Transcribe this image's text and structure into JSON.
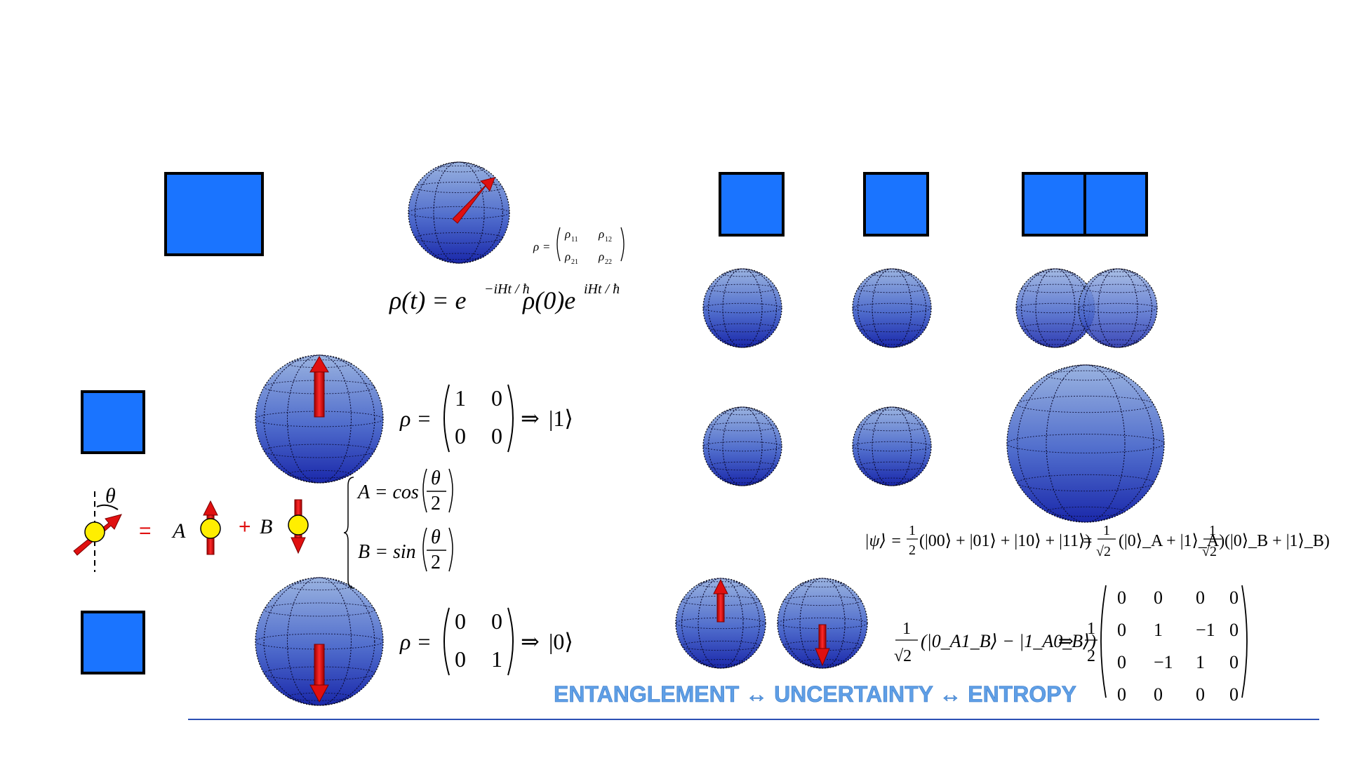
{
  "colors": {
    "box_fill": "#1a74ff",
    "box_stroke": "#000000",
    "sphere_top": "#8fa9dc",
    "sphere_bottom": "#1f2fb0",
    "arrow": "#dd0000",
    "particle": "#ffee00",
    "rule": "#2c50b4",
    "banner_text": "#5f9fe6",
    "theta_red": "#e01010"
  },
  "eq_rho_matrix": {
    "lhs": "ρ",
    "eq": "=",
    "r11": "ρ",
    "s11": "11",
    "r12": "ρ",
    "s12": "12",
    "r21": "ρ",
    "s21": "21",
    "r22": "ρ",
    "s22": "22"
  },
  "eq_time_evolution": {
    "lhs": "ρ(t) = e",
    "exp1": "−iHt / ħ",
    "mid": "ρ(0)e",
    "exp2": "iHt / ħ"
  },
  "eq_state_one": {
    "lhs": "ρ =",
    "m11": "1",
    "m12": "0",
    "m21": "0",
    "m22": "0",
    "implies": "⇒",
    "ket": "|1⟩"
  },
  "eq_state_zero": {
    "lhs": "ρ =",
    "m11": "0",
    "m12": "0",
    "m21": "0",
    "m22": "1",
    "implies": "⇒",
    "ket": "|0⟩"
  },
  "superposition": {
    "theta": "θ",
    "equals": "=",
    "coef_a": "A",
    "plus": "+",
    "coef_b": "B"
  },
  "coefficients": {
    "a_lhs": "A = cos",
    "a_num": "θ",
    "a_den": "2",
    "b_lhs": "B = sin",
    "b_num": "θ",
    "b_den": "2"
  },
  "eq_product_state": {
    "psi": "|ψ⟩ =",
    "half_num": "1",
    "half_den": "2",
    "expansion": "(|00⟩ + |01⟩ + |10⟩ + |11⟩)",
    "eq2": "=",
    "one": "1",
    "sqrt2": "√2",
    "factor_a": "(|0⟩_A + |1⟩_A)",
    "factor_b": "(|0⟩_B + |1⟩_B)"
  },
  "eq_bell_state": {
    "one": "1",
    "sqrt2": "√2",
    "state": "(|0_A1_B⟩ − |1_A0_B⟩)",
    "implies": "⇒",
    "half_num": "1",
    "half_den": "2",
    "matrix": [
      [
        "0",
        "0",
        "0",
        "0"
      ],
      [
        "0",
        "1",
        "−1",
        "0"
      ],
      [
        "0",
        "−1",
        "1",
        "0"
      ],
      [
        "0",
        "0",
        "0",
        "0"
      ]
    ]
  },
  "banner": {
    "text": "ENTANGLEMENT ↔ UNCERTAINTY ↔ ENTROPY"
  }
}
